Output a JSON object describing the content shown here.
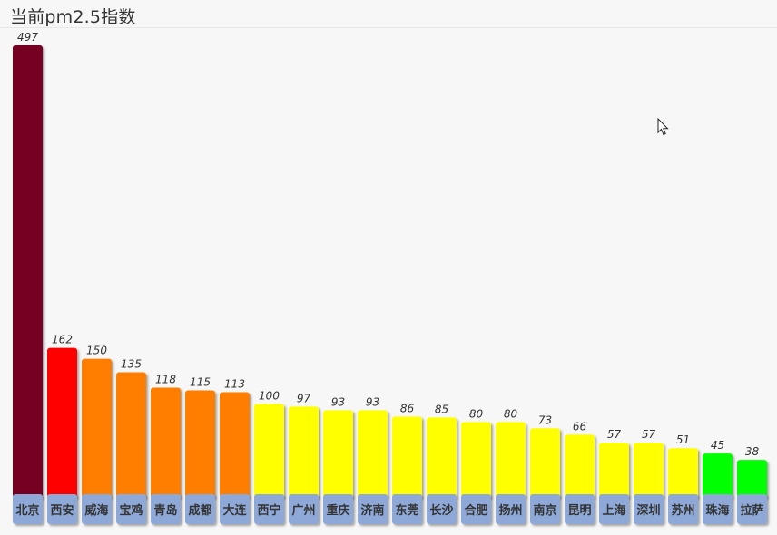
{
  "title": "当前pm2.5指数",
  "chart_data": {
    "type": "bar",
    "title": "当前pm2.5指数",
    "xlabel": "",
    "ylabel": "",
    "ylim": [
      0,
      500
    ],
    "grid": false,
    "categories": [
      "北京",
      "西安",
      "威海",
      "宝鸡",
      "青岛",
      "成都",
      "大连",
      "西宁",
      "广州",
      "重庆",
      "济南",
      "东莞",
      "长沙",
      "合肥",
      "扬州",
      "南京",
      "昆明",
      "上海",
      "深圳",
      "苏州",
      "珠海",
      "拉萨"
    ],
    "values": [
      497,
      162,
      150,
      135,
      118,
      115,
      113,
      100,
      97,
      93,
      93,
      86,
      85,
      80,
      80,
      73,
      66,
      57,
      57,
      51,
      45,
      38
    ],
    "colors": [
      "#750020",
      "#ff0000",
      "#ff7e00",
      "#ff7e00",
      "#ff7e00",
      "#ff7e00",
      "#ff7e00",
      "#ffff00",
      "#ffff00",
      "#ffff00",
      "#ffff00",
      "#ffff00",
      "#ffff00",
      "#ffff00",
      "#ffff00",
      "#ffff00",
      "#ffff00",
      "#ffff00",
      "#ffff00",
      "#ffff00",
      "#00ff00",
      "#00ff00"
    ],
    "label_bg_color": "#8ea9d8"
  }
}
